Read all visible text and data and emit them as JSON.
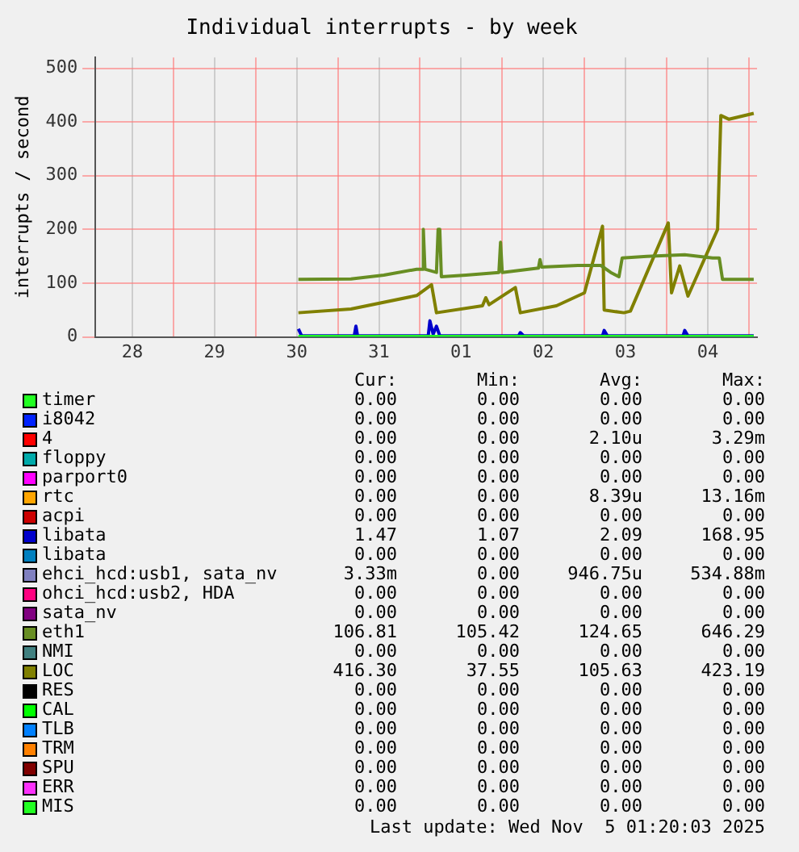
{
  "chart_data": {
    "type": "line",
    "title": "Individual interrupts - by week",
    "ylabel": "interrupts / second",
    "xlim": [
      "2025-10-28T01:12",
      "2025-11-05T02:24"
    ],
    "xticks": [
      {
        "value": "2025-10-28T12:00",
        "label": "28"
      },
      {
        "value": "2025-10-29",
        "label": null
      },
      {
        "value": "2025-10-29T12:00",
        "label": "29"
      },
      {
        "value": "2025-10-30",
        "label": null
      },
      {
        "value": "2025-10-30T12:00",
        "label": "30"
      },
      {
        "value": "2025-10-31",
        "label": null
      },
      {
        "value": "2025-10-31T12:00",
        "label": "31"
      },
      {
        "value": "2025-11-01",
        "label": null
      },
      {
        "value": "2025-11-01T12:00",
        "label": "01"
      },
      {
        "value": "2025-11-02",
        "label": null
      },
      {
        "value": "2025-11-02T12:00",
        "label": "02"
      },
      {
        "value": "2025-11-03",
        "label": null
      },
      {
        "value": "2025-11-03T12:00",
        "label": "03"
      },
      {
        "value": "2025-11-04",
        "label": null
      },
      {
        "value": "2025-11-04T12:00",
        "label": "04"
      },
      {
        "value": "2025-11-05",
        "label": null
      }
    ],
    "ylim": [
      0,
      520
    ],
    "yticks": [
      0,
      100,
      200,
      300,
      400,
      500
    ],
    "grid": true,
    "legend": "bottom",
    "series": [
      {
        "name": "timer",
        "color": "#22ff22"
      },
      {
        "name": "i8042",
        "color": "#0022ff"
      },
      {
        "name": "4",
        "color": "#ff0000"
      },
      {
        "name": "floppy",
        "color": "#00aaaa"
      },
      {
        "name": "parport0",
        "color": "#ff00ff"
      },
      {
        "name": "rtc",
        "color": "#ffa500"
      },
      {
        "name": "acpi",
        "color": "#cc0000"
      },
      {
        "name": "libata",
        "color": "#0000cc",
        "x": [
          "2025-10-30T12:29",
          "2025-10-30T13:26",
          "2025-10-31T04:48",
          "2025-10-31T05:17",
          "2025-10-31T05:46",
          "2025-11-01T02:24",
          "2025-11-01T02:53",
          "2025-11-01T03:50",
          "2025-11-01T04:48",
          "2025-11-01T05:46",
          "2025-11-02T04:48",
          "2025-11-02T05:17",
          "2025-11-02T06:14",
          "2025-11-03T05:17",
          "2025-11-03T05:46",
          "2025-11-03T06:43",
          "2025-11-04T04:48",
          "2025-11-04T05:17",
          "2025-11-04T06:14",
          "2025-11-05T01:26"
        ],
        "values": [
          15,
          2,
          2,
          20,
          2,
          2,
          30,
          5,
          20,
          2,
          2,
          8,
          2,
          2,
          12,
          2,
          2,
          12,
          2,
          2
        ]
      },
      {
        "name": "libata",
        "color": "#0080c0"
      },
      {
        "name": "ehci_hcd:usb1, sata_nv",
        "color": "#8080c0"
      },
      {
        "name": "ohci_hcd:usb2, HDA",
        "color": "#ff0080"
      },
      {
        "name": "sata_nv",
        "color": "#800080"
      },
      {
        "name": "eth1",
        "color": "#688e23",
        "x": [
          "2025-10-30T12:29",
          "2025-10-31T03:50",
          "2025-10-31T13:26",
          "2025-10-31T23:02",
          "2025-11-01T00:58",
          "2025-11-01T00:58",
          "2025-11-01T01:26",
          "2025-11-01T04:48",
          "2025-11-01T05:17",
          "2025-11-01T05:46",
          "2025-11-01T06:14",
          "2025-11-01T13:26",
          "2025-11-01T23:02",
          "2025-11-01T23:31",
          "2025-11-02T00:00",
          "2025-11-02T05:17",
          "2025-11-02T10:34",
          "2025-11-02T11:02",
          "2025-11-02T11:31",
          "2025-11-02T22:05",
          "2025-11-03T04:48",
          "2025-11-03T07:41",
          "2025-11-03T10:05",
          "2025-11-03T11:02",
          "2025-11-03T18:14",
          "2025-11-04T05:17",
          "2025-11-04T13:26",
          "2025-11-04T15:22",
          "2025-11-04T16:19",
          "2025-11-05T01:26"
        ],
        "values": [
          107,
          108,
          115,
          126,
          126,
          200,
          126,
          120,
          200,
          200,
          112,
          115,
          120,
          176,
          120,
          124,
          128,
          144,
          130,
          133,
          133,
          120,
          112,
          147,
          150,
          153,
          147,
          147,
          107,
          107
        ]
      },
      {
        "name": "NMI",
        "color": "#408080"
      },
      {
        "name": "LOC",
        "color": "#808000",
        "x": [
          "2025-10-30T12:29",
          "2025-10-31T03:50",
          "2025-10-31T23:02",
          "2025-11-01T03:22",
          "2025-11-01T04:48",
          "2025-11-01T18:14",
          "2025-11-01T19:12",
          "2025-11-01T20:10",
          "2025-11-02T03:50",
          "2025-11-02T05:17",
          "2025-11-02T15:50",
          "2025-11-03T00:00",
          "2025-11-03T05:17",
          "2025-11-03T05:46",
          "2025-11-03T11:31",
          "2025-11-03T13:26",
          "2025-11-04T00:29",
          "2025-11-04T01:26",
          "2025-11-04T03:50",
          "2025-11-04T06:14",
          "2025-11-04T14:53",
          "2025-11-04T15:50",
          "2025-11-04T18:14",
          "2025-11-05T01:26"
        ],
        "values": [
          45,
          52,
          77,
          97,
          45,
          58,
          73,
          60,
          92,
          45,
          58,
          82,
          206,
          50,
          45,
          48,
          212,
          82,
          132,
          76,
          200,
          412,
          405,
          416
        ]
      },
      {
        "name": "RES",
        "color": "#000000"
      },
      {
        "name": "CAL",
        "color": "#00ff00"
      },
      {
        "name": "TLB",
        "color": "#0080ff"
      },
      {
        "name": "TRM",
        "color": "#ff8000"
      },
      {
        "name": "SPU",
        "color": "#800000"
      },
      {
        "name": "ERR",
        "color": "#fb31fb"
      },
      {
        "name": "MIS",
        "color": "#22ff22",
        "x": [
          "2025-10-30T12:29",
          "2025-11-05T01:26"
        ],
        "values": [
          0,
          0
        ]
      }
    ],
    "annotations": [
      "Cur:",
      "Min:",
      "Avg:",
      "Max:",
      "0.00",
      "0.00",
      "0.00",
      "0.00",
      "0.00",
      "0.00",
      "0.00",
      "0.00",
      "0.00",
      "0.00",
      "2.10u",
      "3.29m",
      "0.00",
      "0.00",
      "0.00",
      "0.00",
      "0.00",
      "0.00",
      "0.00",
      "0.00",
      "0.00",
      "0.00",
      "8.39u",
      "13.16m",
      "0.00",
      "0.00",
      "0.00",
      "0.00",
      "1.47",
      "1.07",
      "2.09",
      "168.95",
      "0.00",
      "0.00",
      "0.00",
      "0.00",
      "3.33m",
      "0.00",
      "946.75u",
      "534.88m",
      "0.00",
      "0.00",
      "0.00",
      "0.00",
      "0.00",
      "0.00",
      "0.00",
      "0.00",
      "106.81",
      "105.42",
      "124.65",
      "646.29",
      "0.00",
      "0.00",
      "0.00",
      "0.00",
      "416.30",
      "37.55",
      "105.63",
      "423.19",
      "0.00",
      "0.00",
      "0.00",
      "0.00",
      "0.00",
      "0.00",
      "0.00",
      "0.00",
      "0.00",
      "0.00",
      "0.00",
      "0.00",
      "0.00",
      "0.00",
      "0.00",
      "0.00",
      "0.00",
      "0.00",
      "0.00",
      "0.00",
      "0.00",
      "0.00",
      "0.00",
      "0.00",
      "0.00",
      "0.00",
      "0.00",
      "0.00",
      "Last update: Wed Nov  5 01:20:03 2025"
    ]
  }
}
